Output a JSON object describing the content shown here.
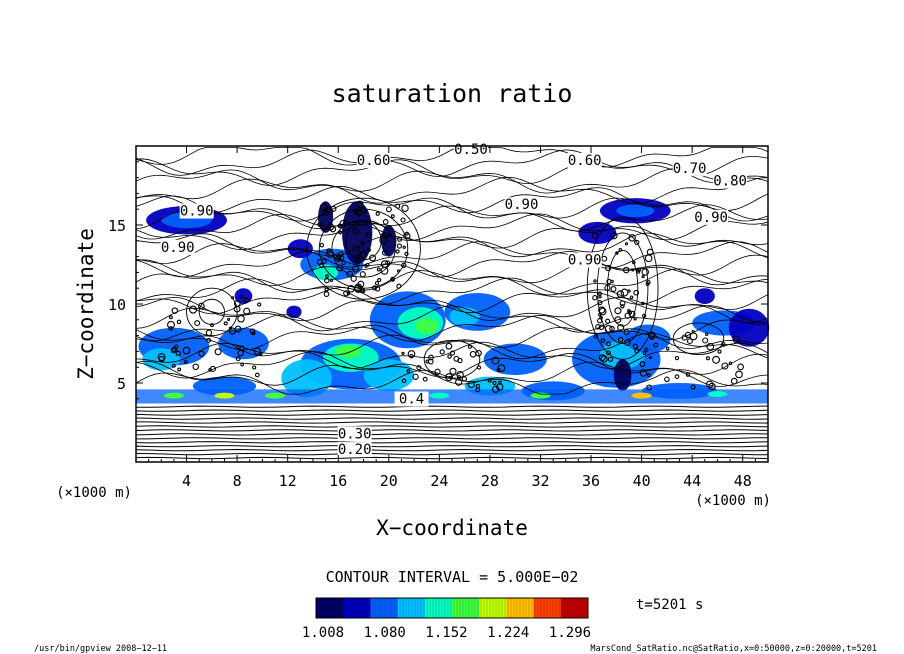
{
  "chart_data": {
    "type": "contour",
    "title": "saturation ratio",
    "xlabel": "X−coordinate",
    "ylabel": "Z−coordinate",
    "x_unit": "(×1000 m)",
    "y_unit": "(×1000 m)",
    "xlim": [
      0,
      50
    ],
    "ylim": [
      0,
      20
    ],
    "x_ticks": [
      4,
      8,
      12,
      16,
      20,
      24,
      28,
      32,
      36,
      40,
      44,
      48
    ],
    "y_ticks": [
      5,
      10,
      15
    ],
    "contour_interval_text": "CONTOUR INTERVAL = 5.000E−02",
    "contour_labels": [
      {
        "text": "0.50",
        "x": 26.5,
        "z": 19.5
      },
      {
        "text": "0.60",
        "x": 18.8,
        "z": 18.8
      },
      {
        "text": "0.60",
        "x": 35.5,
        "z": 18.8
      },
      {
        "text": "0.70",
        "x": 43.8,
        "z": 18.3
      },
      {
        "text": "0.80",
        "x": 47.0,
        "z": 17.5
      },
      {
        "text": "0.90",
        "x": 4.8,
        "z": 15.6
      },
      {
        "text": "0.90",
        "x": 3.3,
        "z": 13.3
      },
      {
        "text": "0.90",
        "x": 30.5,
        "z": 16.0
      },
      {
        "text": "0.90",
        "x": 45.5,
        "z": 15.2
      },
      {
        "text": "0.90",
        "x": 35.5,
        "z": 12.5
      },
      {
        "text": "0.4",
        "x": 21.8,
        "z": 3.7
      },
      {
        "text": "0.30",
        "x": 17.3,
        "z": 1.5
      },
      {
        "text": "0.20",
        "x": 17.3,
        "z": 0.5
      }
    ],
    "colorbar": {
      "colors": [
        "#000060",
        "#0000c0",
        "#0060ff",
        "#00c0ff",
        "#00ffc0",
        "#40ff40",
        "#c0ff00",
        "#ffc000",
        "#ff4000",
        "#c00000"
      ],
      "tick_labels": [
        "1.008",
        "1.080",
        "1.152",
        "1.224",
        "1.296"
      ]
    },
    "time_label": "t=5201 s"
  },
  "footer": {
    "left": "/usr/bin/gpview   2008−12−11",
    "right": "MarsCond_SatRatio.nc@SatRatio,x=0:50000,z=0:20000,t=5201"
  }
}
